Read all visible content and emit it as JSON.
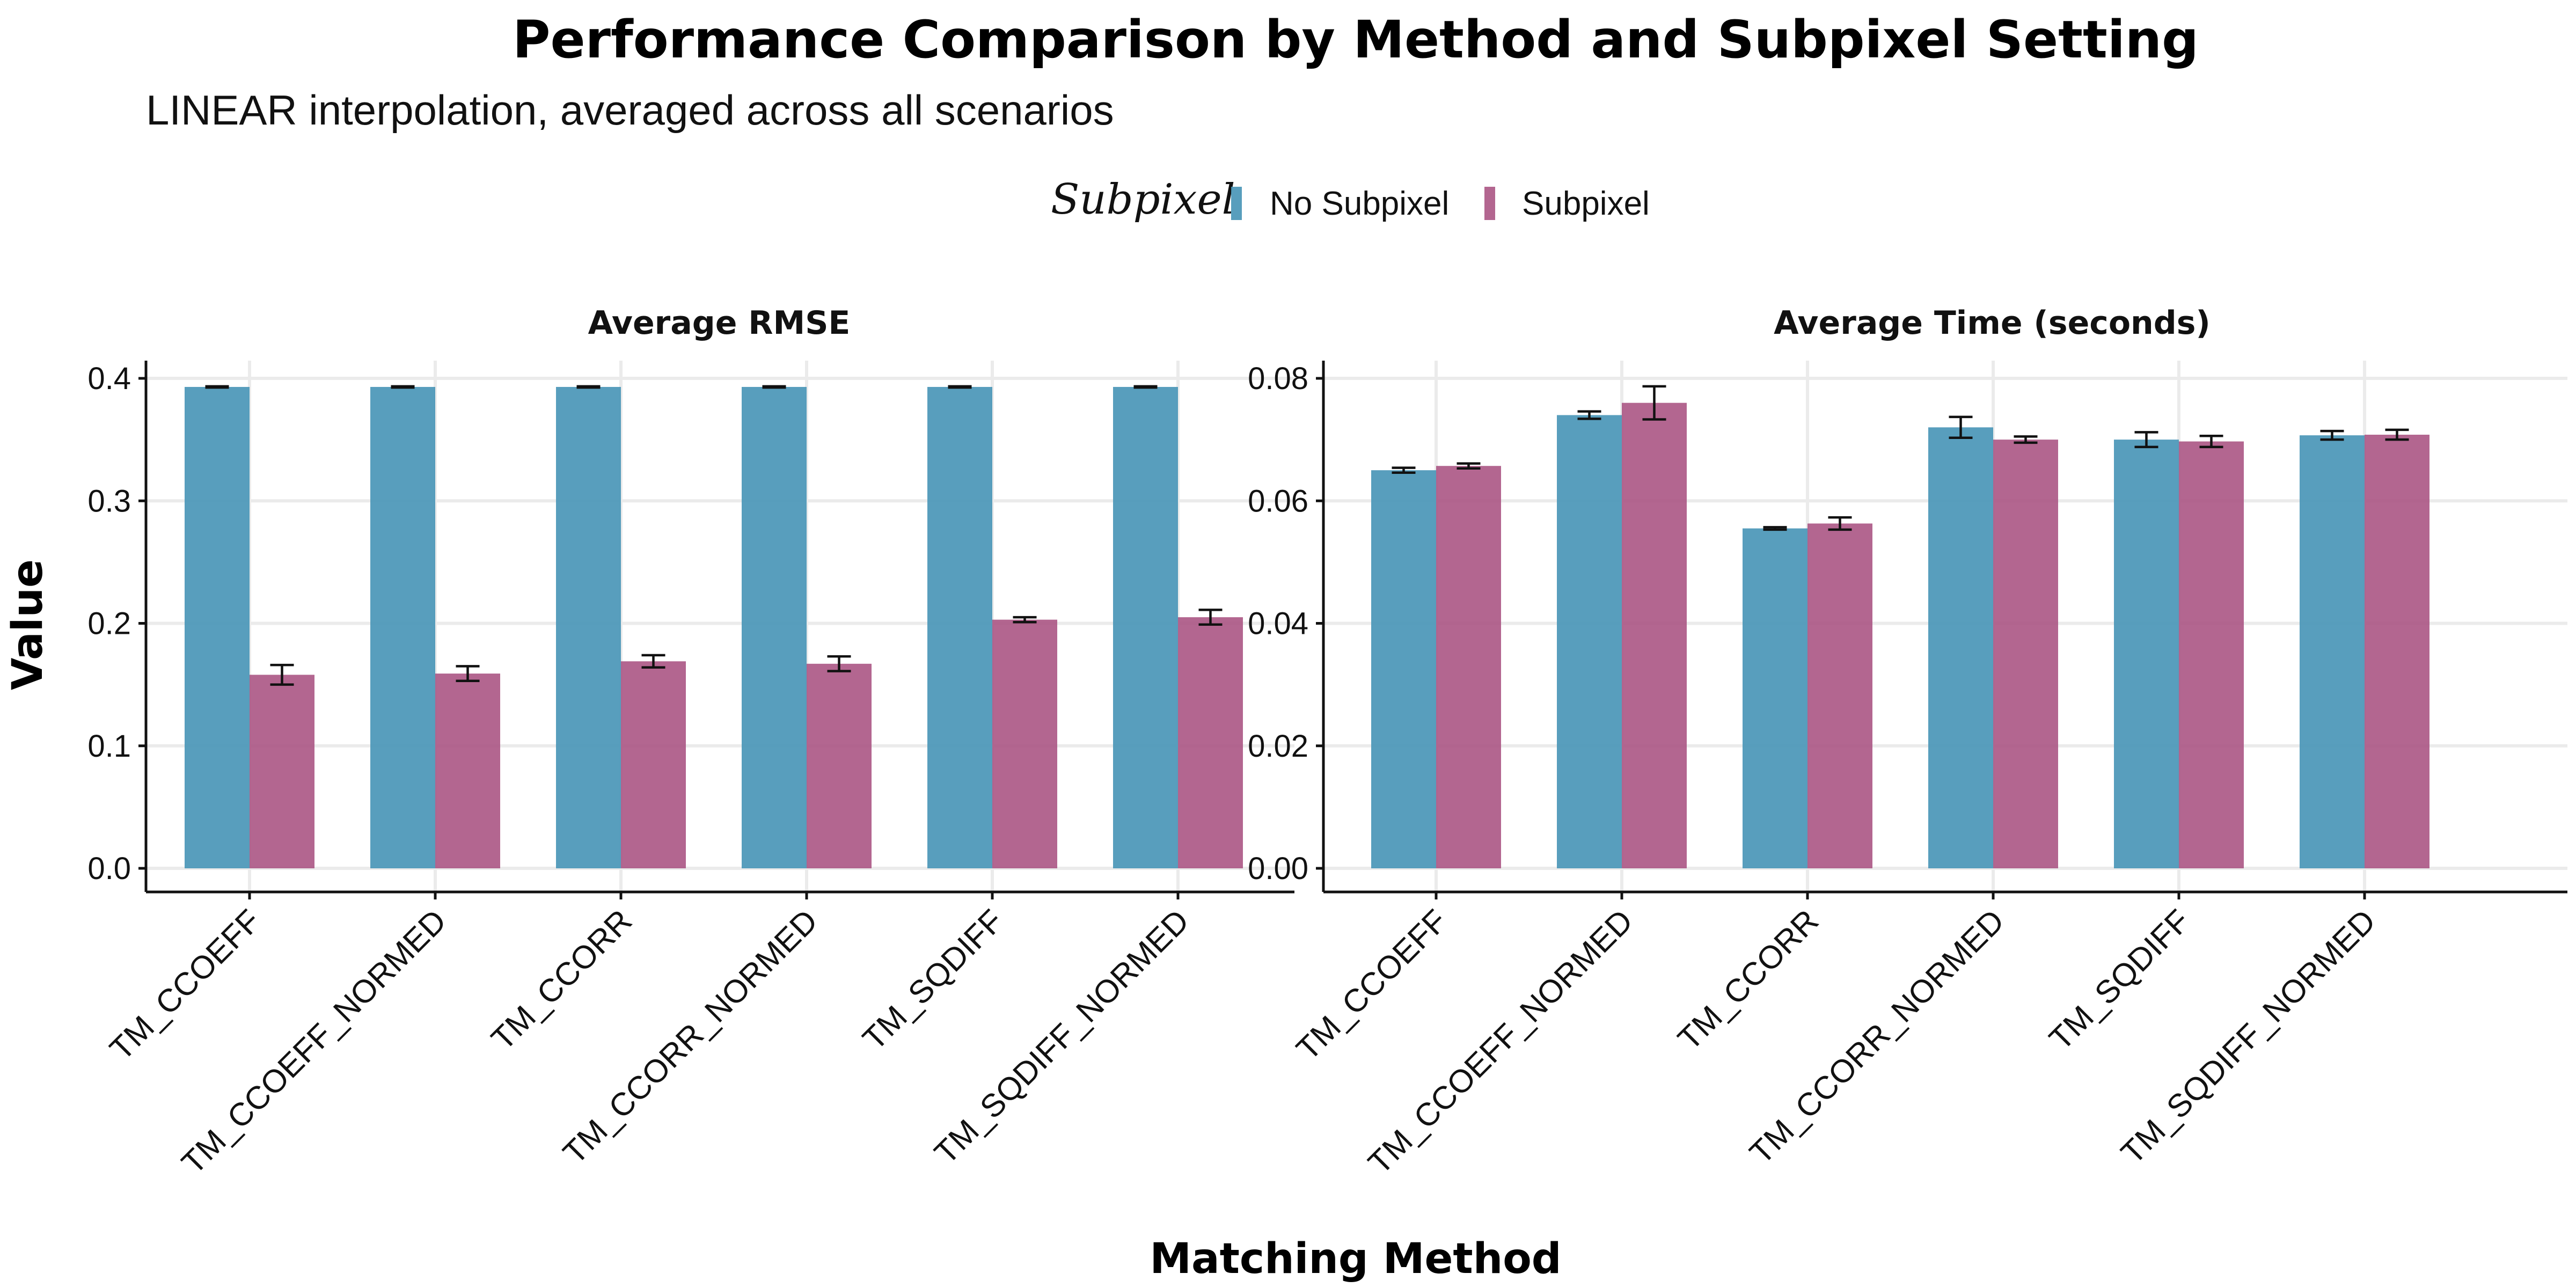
{
  "chart_data": {
    "type": "bar",
    "title": "Performance Comparison by Method and Subpixel Setting",
    "subtitle": "LINEAR interpolation, averaged across all scenarios",
    "xlabel": "Matching Method",
    "ylabel": "Value",
    "legend": {
      "title": "Subpixel",
      "placement": "top",
      "entries": [
        {
          "name": "No Subpixel",
          "color": "#4a96b7"
        },
        {
          "name": "Subpixel",
          "color": "#a84f80"
        }
      ]
    },
    "categories": [
      "TM_CCOEFF",
      "TM_CCOEFF_NORMED",
      "TM_CCORR",
      "TM_CCORR_NORMED",
      "TM_SQDIFF",
      "TM_SQDIFF_NORMED"
    ],
    "panels": [
      {
        "title": "Average RMSE",
        "ylim": [
          0,
          0.41
        ],
        "yticks": [
          0.0,
          0.1,
          0.2,
          0.3,
          0.4
        ],
        "tick_labels": [
          "0.0",
          "0.1",
          "0.2",
          "0.3",
          "0.4"
        ],
        "grid": true,
        "series": [
          {
            "name": "No Subpixel",
            "values": [
              0.393,
              0.393,
              0.393,
              0.393,
              0.393,
              0.393
            ],
            "errors": [
              0.0005,
              0.0005,
              0.0005,
              0.0005,
              0.0005,
              0.0005
            ]
          },
          {
            "name": "Subpixel",
            "values": [
              0.158,
              0.159,
              0.169,
              0.167,
              0.203,
              0.205
            ],
            "errors": [
              0.008,
              0.006,
              0.005,
              0.006,
              0.002,
              0.006
            ]
          }
        ]
      },
      {
        "title": "Average Time (seconds)",
        "ylim": [
          0,
          0.082
        ],
        "yticks": [
          0.0,
          0.02,
          0.04,
          0.06,
          0.08
        ],
        "tick_labels": [
          "0.00",
          "0.02",
          "0.04",
          "0.06",
          "0.08"
        ],
        "grid": true,
        "series": [
          {
            "name": "No Subpixel",
            "values": [
              0.065,
              0.074,
              0.0555,
              0.072,
              0.07,
              0.0707
            ],
            "errors": [
              0.0004,
              0.0006,
              0.0002,
              0.0017,
              0.0012,
              0.0007
            ]
          },
          {
            "name": "Subpixel",
            "values": [
              0.0657,
              0.076,
              0.0563,
              0.07,
              0.0697,
              0.0708
            ],
            "errors": [
              0.0004,
              0.0027,
              0.001,
              0.0005,
              0.0009,
              0.0008
            ]
          }
        ]
      }
    ]
  }
}
